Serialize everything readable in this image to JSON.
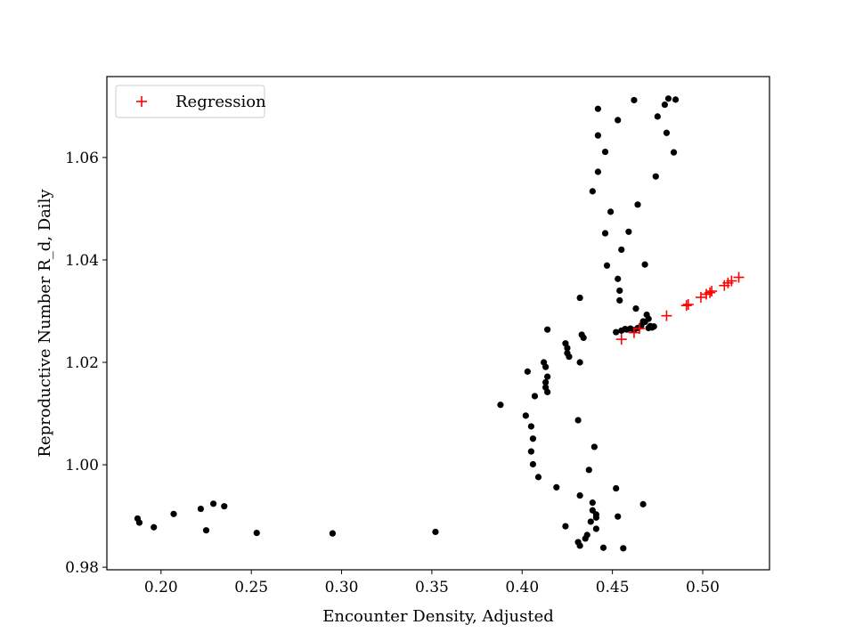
{
  "chart_data": {
    "type": "scatter",
    "title": "",
    "xlabel": "Encounter Density, Adjusted",
    "ylabel": "Reproductive Number R_d, Daily",
    "xlim": [
      0.17,
      0.537
    ],
    "ylim": [
      0.9795,
      1.0758
    ],
    "xticks": [
      "0.20",
      "0.25",
      "0.30",
      "0.35",
      "0.40",
      "0.45",
      "0.50"
    ],
    "yticks": [
      "0.98",
      "1.00",
      "1.02",
      "1.04",
      "1.06"
    ],
    "grid": false,
    "legend_position": "top-left",
    "series": [
      {
        "name": "",
        "marker": "circle",
        "color": "#000000",
        "points": [
          [
            0.187,
            0.9895
          ],
          [
            0.188,
            0.9887
          ],
          [
            0.196,
            0.9878
          ],
          [
            0.207,
            0.9904
          ],
          [
            0.222,
            0.9914
          ],
          [
            0.229,
            0.9924
          ],
          [
            0.235,
            0.9919
          ],
          [
            0.225,
            0.9872
          ],
          [
            0.253,
            0.9867
          ],
          [
            0.295,
            0.9866
          ],
          [
            0.352,
            0.9869
          ],
          [
            0.388,
            1.0117
          ],
          [
            0.402,
            1.0096
          ],
          [
            0.403,
            1.0182
          ],
          [
            0.405,
            1.0026
          ],
          [
            0.405,
            1.0075
          ],
          [
            0.406,
            1.0051
          ],
          [
            0.406,
            1.0001
          ],
          [
            0.407,
            1.0134
          ],
          [
            0.409,
            0.9976
          ],
          [
            0.412,
            1.02
          ],
          [
            0.413,
            1.0191
          ],
          [
            0.413,
            1.0161
          ],
          [
            0.413,
            1.0151
          ],
          [
            0.414,
            1.0142
          ],
          [
            0.414,
            1.0172
          ],
          [
            0.414,
            1.0264
          ],
          [
            0.419,
            0.9956
          ],
          [
            0.424,
            0.988
          ],
          [
            0.424,
            1.0237
          ],
          [
            0.425,
            1.0228
          ],
          [
            0.425,
            1.0218
          ],
          [
            0.426,
            1.0211
          ],
          [
            0.431,
            0.9849
          ],
          [
            0.431,
            1.0087
          ],
          [
            0.432,
            0.9842
          ],
          [
            0.432,
            0.994
          ],
          [
            0.432,
            1.02
          ],
          [
            0.432,
            1.0326
          ],
          [
            0.433,
            1.0254
          ],
          [
            0.434,
            1.0248
          ],
          [
            0.435,
            0.9856
          ],
          [
            0.436,
            0.9863
          ],
          [
            0.437,
            0.999
          ],
          [
            0.438,
            0.9889
          ],
          [
            0.439,
            0.9911
          ],
          [
            0.439,
            0.9926
          ],
          [
            0.439,
            1.0534
          ],
          [
            0.44,
            1.0035
          ],
          [
            0.441,
            0.9903
          ],
          [
            0.441,
            0.9897
          ],
          [
            0.441,
            0.9875
          ],
          [
            0.442,
            1.0643
          ],
          [
            0.442,
            1.0572
          ],
          [
            0.442,
            1.0695
          ],
          [
            0.445,
            0.9838
          ],
          [
            0.446,
            1.0452
          ],
          [
            0.446,
            1.0611
          ],
          [
            0.447,
            1.0389
          ],
          [
            0.449,
            1.0494
          ],
          [
            0.452,
            1.0259
          ],
          [
            0.452,
            0.9954
          ],
          [
            0.453,
            0.9899
          ],
          [
            0.453,
            1.0363
          ],
          [
            0.453,
            1.0673
          ],
          [
            0.454,
            1.034
          ],
          [
            0.454,
            1.0321
          ],
          [
            0.455,
            1.0262
          ],
          [
            0.455,
            1.042
          ],
          [
            0.456,
            0.9837
          ],
          [
            0.457,
            1.0265
          ],
          [
            0.458,
            1.0264
          ],
          [
            0.459,
            1.0455
          ],
          [
            0.46,
            1.0266
          ],
          [
            0.462,
            1.0712
          ],
          [
            0.462,
            1.0263
          ],
          [
            0.463,
            1.0305
          ],
          [
            0.464,
            1.0267
          ],
          [
            0.464,
            1.0508
          ],
          [
            0.466,
            1.0272
          ],
          [
            0.467,
            1.028
          ],
          [
            0.467,
            0.9923
          ],
          [
            0.468,
            1.0391
          ],
          [
            0.468,
            1.0279
          ],
          [
            0.469,
            1.0293
          ],
          [
            0.47,
            1.0285
          ],
          [
            0.47,
            1.0267
          ],
          [
            0.471,
            1.0271
          ],
          [
            0.472,
            1.0268
          ],
          [
            0.473,
            1.027
          ],
          [
            0.474,
            1.0563
          ],
          [
            0.475,
            1.068
          ],
          [
            0.479,
            1.0703
          ],
          [
            0.48,
            1.0648
          ],
          [
            0.481,
            1.0715
          ],
          [
            0.484,
            1.061
          ],
          [
            0.485,
            1.0713
          ]
        ]
      },
      {
        "name": "Regression",
        "marker": "plus",
        "color": "#ff0000",
        "points": [
          [
            0.455,
            1.0245
          ],
          [
            0.462,
            1.0258
          ],
          [
            0.465,
            1.0266
          ],
          [
            0.48,
            1.0291
          ],
          [
            0.491,
            1.0311
          ],
          [
            0.492,
            1.0313
          ],
          [
            0.499,
            1.0327
          ],
          [
            0.502,
            1.0333
          ],
          [
            0.504,
            1.0336
          ],
          [
            0.505,
            1.0339
          ],
          [
            0.512,
            1.035
          ],
          [
            0.514,
            1.0355
          ],
          [
            0.516,
            1.0359
          ],
          [
            0.52,
            1.0366
          ]
        ]
      }
    ]
  }
}
